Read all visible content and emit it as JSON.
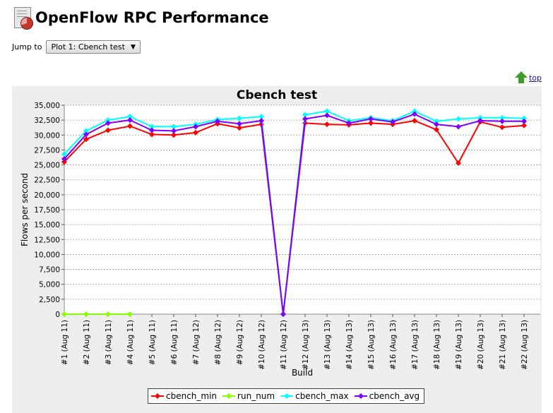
{
  "page": {
    "title": "OpenFlow RPC Performance"
  },
  "jump": {
    "label": "Jump to",
    "selected": "Plot 1: Cbench test"
  },
  "top_link": {
    "label": "top"
  },
  "colors": {
    "cbench_min": "#ff0000",
    "run_num": "#88ff00",
    "cbench_max": "#00ffff",
    "cbench_avg": "#7f00ff"
  },
  "chart_data": {
    "type": "line",
    "title": "Cbench test",
    "xlabel": "Build",
    "ylabel": "Flows per second",
    "ylim": [
      0,
      35000
    ],
    "yticks": [
      "0",
      "2,500",
      "5,000",
      "7,500",
      "10,000",
      "12,500",
      "15,000",
      "17,500",
      "20,000",
      "22,500",
      "25,000",
      "27,500",
      "30,000",
      "32,500",
      "35,000"
    ],
    "grid": true,
    "legend_position": "bottom",
    "categories": [
      "#1 (Aug 11)",
      "#2 (Aug 11)",
      "#3 (Aug 11)",
      "#4 (Aug 11)",
      "#5 (Aug 11)",
      "#6 (Aug 11)",
      "#7 (Aug 12)",
      "#8 (Aug 12)",
      "#9 (Aug 12)",
      "#10 (Aug 12)",
      "#11 (Aug 12)",
      "#12 (Aug 13)",
      "#13 (Aug 13)",
      "#14 (Aug 13)",
      "#15 (Aug 13)",
      "#16 (Aug 13)",
      "#17 (Aug 13)",
      "#18 (Aug 13)",
      "#19 (Aug 13)",
      "#20 (Aug 13)",
      "#21 (Aug 13)",
      "#22 (Aug 13)"
    ],
    "series": [
      {
        "name": "cbench_min",
        "color": "#ff0000",
        "values": [
          25500,
          29300,
          30800,
          31500,
          30100,
          30000,
          30400,
          31900,
          31200,
          31800,
          0,
          32000,
          31800,
          31700,
          32000,
          31800,
          32400,
          30900,
          25300,
          32200,
          31300,
          31600
        ]
      },
      {
        "name": "run_num",
        "color": "#88ff00",
        "values": [
          0,
          0,
          0,
          0,
          null,
          null,
          null,
          null,
          null,
          null,
          null,
          null,
          null,
          null,
          null,
          null,
          null,
          null,
          null,
          null,
          null,
          null
        ]
      },
      {
        "name": "cbench_max",
        "color": "#00ffff",
        "values": [
          26800,
          30700,
          32500,
          33100,
          31400,
          31400,
          31800,
          32600,
          32800,
          33100,
          0,
          33400,
          34000,
          32400,
          32900,
          32400,
          34000,
          32300,
          32700,
          32900,
          32900,
          32800
        ]
      },
      {
        "name": "cbench_avg",
        "color": "#7f00ff",
        "values": [
          26000,
          30100,
          32000,
          32500,
          30800,
          30700,
          31400,
          32300,
          31900,
          32400,
          0,
          32700,
          33300,
          32000,
          32700,
          32200,
          33500,
          31800,
          31400,
          32400,
          32300,
          32300
        ]
      }
    ]
  }
}
